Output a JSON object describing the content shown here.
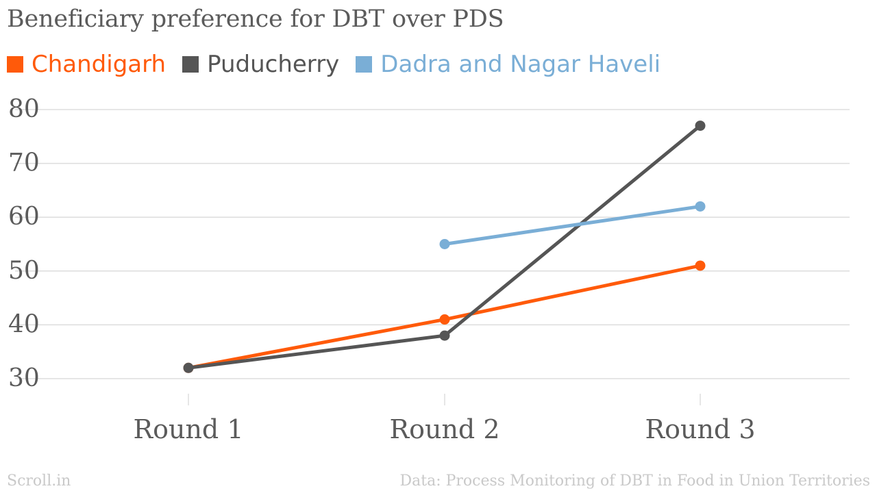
{
  "chart_data": {
    "type": "line",
    "title": "Beneficiary preference for DBT over PDS",
    "categories": [
      "Round 1",
      "Round 2",
      "Round 3"
    ],
    "y_ticks": [
      30,
      40,
      50,
      60,
      70,
      80
    ],
    "ylim": [
      30,
      80
    ],
    "grid": true,
    "legend_position": "top-left",
    "series": [
      {
        "name": "Chandigarh",
        "color": "#ff5a0a",
        "values": [
          32,
          41,
          51
        ]
      },
      {
        "name": "Puducherry",
        "color": "#555555",
        "values": [
          32,
          38,
          77
        ]
      },
      {
        "name": "Dadra and Nagar Haveli",
        "color": "#7aaed6",
        "values": [
          null,
          55,
          62
        ]
      }
    ]
  },
  "footer": {
    "source_left": "Scroll.in",
    "source_right": "Data: Process Monitoring of DBT in Food in Union Territories"
  }
}
